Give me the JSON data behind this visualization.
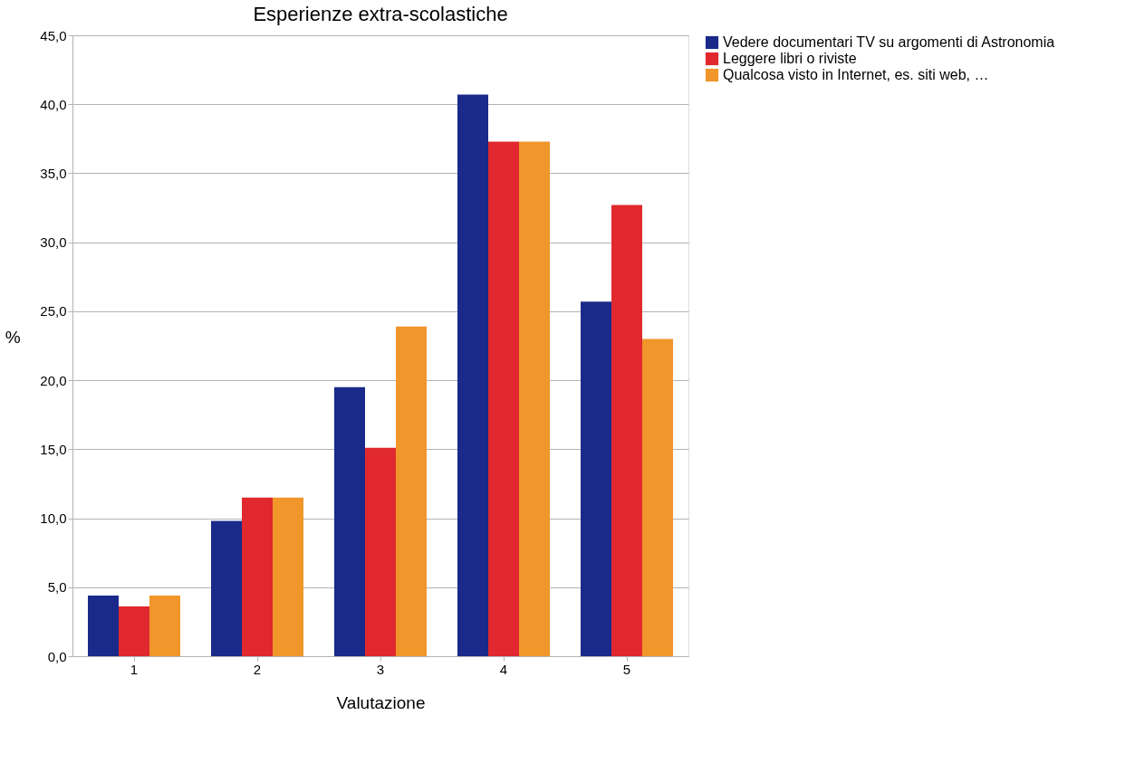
{
  "chart_data": {
    "type": "bar",
    "title": "Esperienze extra-scolastiche",
    "xlabel": "Valutazione",
    "ylabel": "%",
    "categories": [
      "1",
      "2",
      "3",
      "4",
      "5"
    ],
    "series": [
      {
        "name": "Vedere documentari TV su argomenti di Astronomia",
        "color": "#1a2a8a",
        "values": [
          4.4,
          9.8,
          19.5,
          40.7,
          25.7
        ]
      },
      {
        "name": "Leggere libri o riviste",
        "color": "#e0282e",
        "values": [
          3.6,
          11.5,
          15.1,
          37.3,
          32.7
        ]
      },
      {
        "name": "Qualcosa visto in Internet, es. siti web, …",
        "color": "#f0962a",
        "values": [
          4.4,
          11.5,
          23.9,
          37.3,
          23.0
        ]
      }
    ],
    "ylim": [
      0,
      45
    ],
    "yticks": [
      {
        "value": 0,
        "label": "0,0"
      },
      {
        "value": 5,
        "label": "5,0"
      },
      {
        "value": 10,
        "label": "10,0"
      },
      {
        "value": 15,
        "label": "15,0"
      },
      {
        "value": 20,
        "label": "20,0"
      },
      {
        "value": 25,
        "label": "25,0"
      },
      {
        "value": 30,
        "label": "30,0"
      },
      {
        "value": 35,
        "label": "35,0"
      },
      {
        "value": 40,
        "label": "40,0"
      },
      {
        "value": 45,
        "label": "45,0"
      }
    ],
    "grid": "y",
    "legend": "right"
  }
}
